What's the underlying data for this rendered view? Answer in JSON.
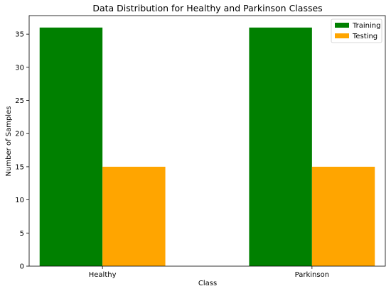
{
  "chart_data": {
    "type": "bar",
    "title": "Data Distribution for Healthy and Parkinson Classes",
    "xlabel": "Class",
    "ylabel": "Number of Samples",
    "categories": [
      "Healthy",
      "Parkinson"
    ],
    "series": [
      {
        "name": "Training",
        "values": [
          36,
          36
        ],
        "color": "#008000"
      },
      {
        "name": "Testing",
        "values": [
          15,
          15
        ],
        "color": "#ffa500"
      }
    ],
    "ylim": [
      0,
      37.8
    ],
    "yticks": [
      "0",
      "5",
      "10",
      "15",
      "20",
      "25",
      "30",
      "35"
    ],
    "grid": false,
    "legend_position": "top-right"
  }
}
